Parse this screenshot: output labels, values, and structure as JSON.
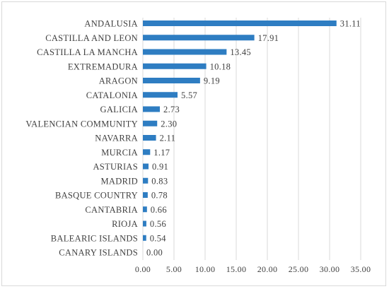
{
  "chart_data": {
    "type": "bar",
    "orientation": "horizontal",
    "title": "",
    "xlabel": "",
    "ylabel": "",
    "categories": [
      "ANDALUSIA",
      "CASTILLA AND LEON",
      "CASTILLA LA MANCHA",
      "EXTREMADURA",
      "ARAGON",
      "CATALONIA",
      "GALICIA",
      "VALENCIAN COMMUNITY",
      "NAVARRA",
      "MURCIA",
      "ASTURIAS",
      "MADRID",
      "BASQUE COUNTRY",
      "CANTABRIA",
      "RIOJA",
      "BALEARIC ISLANDS",
      "CANARY ISLANDS"
    ],
    "values": [
      31.11,
      17.91,
      13.45,
      10.18,
      9.19,
      5.57,
      2.73,
      2.3,
      2.11,
      1.17,
      0.91,
      0.83,
      0.78,
      0.66,
      0.56,
      0.54,
      0.0
    ],
    "value_labels": [
      "31.11",
      "17.91",
      "13.45",
      "10.18",
      "9.19",
      "5.57",
      "2.73",
      "2.30",
      "2.11",
      "1.17",
      "0.91",
      "0.83",
      "0.78",
      "0.66",
      "0.56",
      "0.54",
      "0.00"
    ],
    "xlim": [
      0,
      35
    ],
    "xticks": [
      "0.00",
      "5.00",
      "10.00",
      "15.00",
      "20.00",
      "25.00",
      "30.00",
      "35.00"
    ],
    "grid": "vertical",
    "legend": "none",
    "bar_color": "#2e7dc2",
    "grid_color": "#d9d9d9",
    "text_color": "#404040"
  }
}
